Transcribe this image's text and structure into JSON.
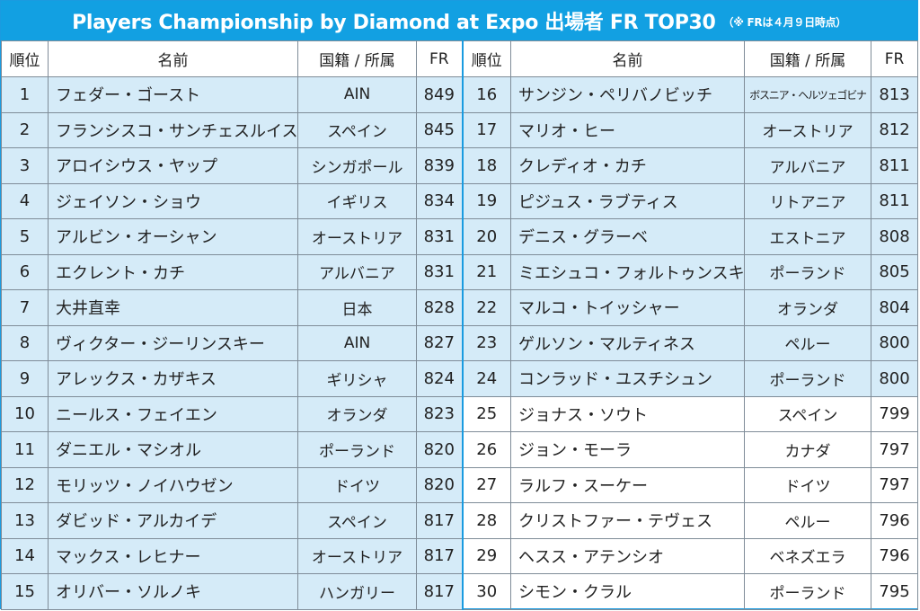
{
  "title": {
    "main": "Players Championship by Diamond at Expo 出場者 FR TOP30",
    "note": "（※ FRは４月９日時点）"
  },
  "headers": {
    "rank": "順位",
    "name": "名前",
    "nationality": "国籍 / 所属",
    "fr": "FR"
  },
  "colors": {
    "accent": "#12a0e2",
    "row_highlight": "#d5ebf8"
  },
  "players": [
    {
      "rank": "1",
      "name": "フェダー・ゴースト",
      "nationality": "AIN",
      "fr": "849"
    },
    {
      "rank": "2",
      "name": "フランシスコ・サンチェスルイス",
      "nationality": "スペイン",
      "fr": "845"
    },
    {
      "rank": "3",
      "name": "アロイシウス・ヤップ",
      "nationality": "シンガポール",
      "fr": "839"
    },
    {
      "rank": "4",
      "name": "ジェイソン・ショウ",
      "nationality": "イギリス",
      "fr": "834"
    },
    {
      "rank": "5",
      "name": "アルビン・オーシャン",
      "nationality": "オーストリア",
      "fr": "831"
    },
    {
      "rank": "6",
      "name": "エクレント・カチ",
      "nationality": "アルバニア",
      "fr": "831"
    },
    {
      "rank": "7",
      "name": "大井直幸",
      "nationality": "日本",
      "fr": "828"
    },
    {
      "rank": "8",
      "name": "ヴィクター・ジーリンスキー",
      "nationality": "AIN",
      "fr": "827"
    },
    {
      "rank": "9",
      "name": "アレックス・カザキス",
      "nationality": "ギリシャ",
      "fr": "824"
    },
    {
      "rank": "10",
      "name": "ニールス・フェイエン",
      "nationality": "オランダ",
      "fr": "823"
    },
    {
      "rank": "11",
      "name": "ダニエル・マシオル",
      "nationality": "ポーランド",
      "fr": "820"
    },
    {
      "rank": "12",
      "name": "モリッツ・ノイハウゼン",
      "nationality": "ドイツ",
      "fr": "820"
    },
    {
      "rank": "13",
      "name": "ダビッド・アルカイデ",
      "nationality": "スペイン",
      "fr": "817"
    },
    {
      "rank": "14",
      "name": "マックス・レヒナー",
      "nationality": "オーストリア",
      "fr": "817"
    },
    {
      "rank": "15",
      "name": "オリバー・ソルノキ",
      "nationality": "ハンガリー",
      "fr": "817"
    },
    {
      "rank": "16",
      "name": "サンジン・ペリバノビッチ",
      "nationality": "ボスニア・ヘルツェゴビナ",
      "fr": "813"
    },
    {
      "rank": "17",
      "name": "マリオ・ヒー",
      "nationality": "オーストリア",
      "fr": "812"
    },
    {
      "rank": "18",
      "name": "クレディオ・カチ",
      "nationality": "アルバニア",
      "fr": "811"
    },
    {
      "rank": "19",
      "name": "ピジュス・ラブティス",
      "nationality": "リトアニア",
      "fr": "811"
    },
    {
      "rank": "20",
      "name": "デニス・グラーベ",
      "nationality": "エストニア",
      "fr": "808"
    },
    {
      "rank": "21",
      "name": "ミエシュコ・フォルトゥンスキ",
      "nationality": "ポーランド",
      "fr": "805"
    },
    {
      "rank": "22",
      "name": "マルコ・トイッシャー",
      "nationality": "オランダ",
      "fr": "804"
    },
    {
      "rank": "23",
      "name": "ゲルソン・マルティネス",
      "nationality": "ペルー",
      "fr": "800"
    },
    {
      "rank": "24",
      "name": "コンラッド・ユスチシュン",
      "nationality": "ポーランド",
      "fr": "800"
    },
    {
      "rank": "25",
      "name": "ジョナス・ソウト",
      "nationality": "スペイン",
      "fr": "799"
    },
    {
      "rank": "26",
      "name": "ジョン・モーラ",
      "nationality": "カナダ",
      "fr": "797"
    },
    {
      "rank": "27",
      "name": "ラルフ・スーケー",
      "nationality": "ドイツ",
      "fr": "797"
    },
    {
      "rank": "28",
      "name": "クリストファー・テヴェス",
      "nationality": "ペルー",
      "fr": "796"
    },
    {
      "rank": "29",
      "name": "ヘスス・アテンシオ",
      "nationality": "ベネズエラ",
      "fr": "796"
    },
    {
      "rank": "30",
      "name": "シモン・クラル",
      "nationality": "ポーランド",
      "fr": "795"
    }
  ]
}
